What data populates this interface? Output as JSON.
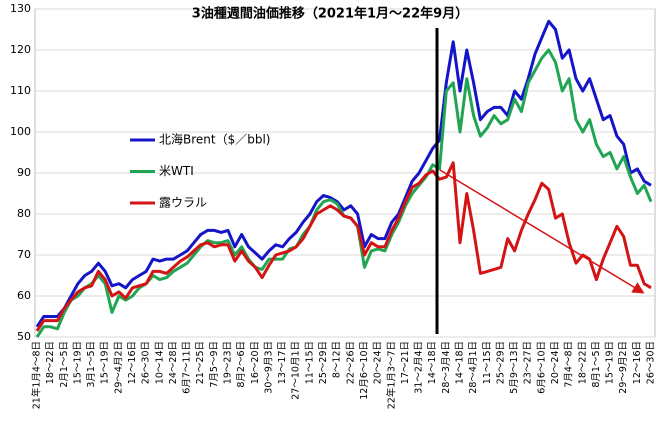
{
  "chart_data": {
    "type": "line",
    "title": "3油種週間油価推移（2021年1月～22年9月）",
    "categories": [
      "21年1月4～8日",
      null,
      "18～22日",
      null,
      "2月1～5日",
      null,
      "15～19日",
      null,
      "3月1～5日",
      null,
      "15～19日",
      null,
      "29～4月2日",
      null,
      "12～16日",
      null,
      "26～30日",
      null,
      "10～14日",
      null,
      "24～28日",
      null,
      "6月7～11日",
      null,
      "21～25日",
      null,
      "7月5～9日",
      null,
      "19～23日",
      null,
      "8月2～6日",
      null,
      "16～20日",
      null,
      "30～9月3日",
      null,
      "13～17日",
      null,
      "27～10月1日",
      null,
      "11～15日",
      null,
      "25～29日",
      null,
      "8～12日",
      null,
      "22～26日",
      null,
      "12月6～10日",
      null,
      "20～24日",
      null,
      "22年1月3～7日",
      null,
      "17～21日",
      null,
      "31～2月4日",
      null,
      "14～18日",
      null,
      "28～3月4日",
      null,
      "14～18日",
      null,
      "28～4月1日",
      null,
      "11～15日",
      null,
      "25～29日",
      null,
      "5月9～13日",
      null,
      "23～27日",
      null,
      "6月6～10日",
      null,
      "20～24日",
      null,
      "7月4～8日",
      null,
      "18～22日",
      null,
      "8月1～5日",
      null,
      "15～19日",
      null,
      "29～9月2日",
      null,
      "12～16日",
      null,
      "26～30日"
    ],
    "series": [
      {
        "name": "北海Brent（$／bbl)",
        "color": "#1414c8",
        "values": [
          52.5,
          55,
          55,
          55,
          57,
          60,
          63,
          65,
          66,
          68,
          66,
          62.5,
          63,
          62,
          64,
          65,
          66,
          69,
          68.5,
          69,
          69,
          70,
          71,
          73,
          75,
          76,
          76,
          75.5,
          76,
          72,
          75,
          72,
          70.5,
          69,
          71,
          72.5,
          72,
          74,
          75.5,
          78,
          80,
          83,
          84.5,
          84,
          83,
          81,
          82,
          80,
          72,
          75,
          74,
          74,
          78,
          80,
          84,
          88,
          90,
          93,
          96,
          98,
          112,
          122,
          110,
          120,
          112,
          103,
          105,
          106,
          106,
          104,
          110,
          108,
          113,
          119,
          123,
          127,
          125,
          118,
          120,
          113,
          110,
          113,
          108,
          103,
          104,
          99,
          97,
          90,
          91,
          88,
          87
        ]
      },
      {
        "name": "米WTI",
        "color": "#22a552",
        "values": [
          50,
          52.5,
          52.5,
          52,
          56,
          59,
          60,
          62,
          63,
          65,
          63,
          56,
          60,
          59,
          60,
          62,
          63,
          65,
          64,
          64.5,
          66,
          67,
          68,
          70,
          72,
          73.5,
          73,
          73,
          73.5,
          70,
          72,
          69,
          67,
          66.5,
          69,
          69,
          69,
          71.5,
          72,
          75,
          77,
          81,
          83,
          83.5,
          82.5,
          79.5,
          79,
          77,
          67,
          71,
          71.5,
          71,
          75,
          78,
          82,
          85,
          87,
          89,
          92,
          91,
          110,
          112,
          100,
          113,
          104,
          99,
          101,
          104,
          102,
          103,
          108,
          105,
          112,
          115,
          118,
          120,
          117,
          110,
          113,
          103,
          100,
          103,
          97,
          94,
          95,
          91,
          94,
          89,
          85,
          87,
          83
        ]
      },
      {
        "name": "露ウラル",
        "color": "#d41414",
        "values": [
          51.5,
          54,
          54,
          54,
          57,
          59,
          61,
          62,
          62.5,
          66,
          64,
          60,
          61,
          59.5,
          62,
          62.5,
          63,
          66,
          66,
          65.5,
          67,
          68.5,
          69.5,
          71,
          72.5,
          73,
          72,
          72.5,
          72.5,
          68.5,
          71,
          68.5,
          67,
          64.5,
          67.5,
          70,
          70.5,
          71,
          72,
          74,
          77,
          80,
          81,
          82,
          81,
          79.5,
          79,
          77,
          70,
          73,
          72,
          72,
          76,
          79,
          83,
          86.5,
          87.5,
          89.5,
          90.5,
          88.5,
          89,
          92.5,
          73,
          85,
          76,
          65.5,
          66,
          66.5,
          67,
          74,
          71,
          76,
          80,
          83.5,
          87.5,
          86,
          79,
          80,
          73,
          68,
          70,
          69,
          64,
          69,
          73,
          77,
          74.5,
          67.5,
          67.5,
          63,
          62
        ]
      }
    ],
    "ylim": [
      50,
      130
    ],
    "yticks": [
      50,
      60,
      70,
      80,
      90,
      100,
      110,
      120,
      130
    ],
    "grid": true,
    "legend": "left"
  }
}
